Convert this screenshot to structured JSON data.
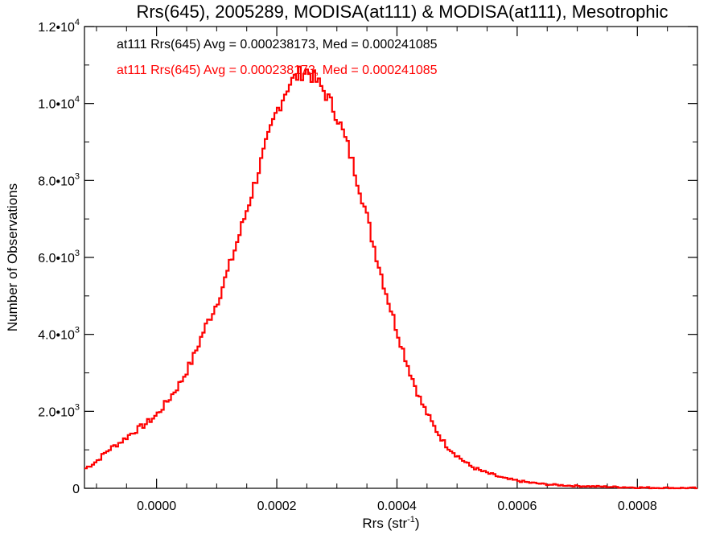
{
  "chart_data": {
    "type": "histogram",
    "title": "Rrs(645), 2005289, MODISA(at111) & MODISA(at111), Mesotrophic",
    "xlabel": "Rrs (str",
    "xlabel_sup": "-1",
    "xlabel_end": ")",
    "ylabel": "Number of Observations",
    "xlim": [
      -0.00012,
      0.0009
    ],
    "ylim": [
      0,
      12000
    ],
    "grid": false,
    "legend_placement": "top-left",
    "x_ticks": [
      {
        "value": 0.0,
        "label": "0.0000"
      },
      {
        "value": 0.0002,
        "label": "0.0002"
      },
      {
        "value": 0.0004,
        "label": "0.0004"
      },
      {
        "value": 0.0006,
        "label": "0.0006"
      },
      {
        "value": 0.0008,
        "label": "0.0008"
      }
    ],
    "y_ticks": [
      {
        "value": 0,
        "mant": "0",
        "exp": ""
      },
      {
        "value": 2000,
        "mant": "2.0•10",
        "exp": "3"
      },
      {
        "value": 4000,
        "mant": "4.0•10",
        "exp": "3"
      },
      {
        "value": 6000,
        "mant": "6.0•10",
        "exp": "3"
      },
      {
        "value": 8000,
        "mant": "8.0•10",
        "exp": "3"
      },
      {
        "value": 10000,
        "mant": "1.0•10",
        "exp": "4"
      },
      {
        "value": 12000,
        "mant": "1.2•10",
        "exp": "4"
      }
    ],
    "series": [
      {
        "name": "at111 Rrs(645) Avg = 0.000238173, Med = 0.000241085",
        "color": "#000000"
      },
      {
        "name": "at111 Rrs(645) Avg = 0.000238173, Med = 0.000241085",
        "color": "#ff0000"
      }
    ],
    "distribution": {
      "shape": "histogram",
      "bin_width": 4e-06,
      "x": [
        -0.00012,
        -0.0001,
        -8e-05,
        -6e-05,
        -4e-05,
        -2e-05,
        0.0,
        2e-05,
        4e-05,
        6e-05,
        8e-05,
        0.0001,
        0.00012,
        0.00014,
        0.00016,
        0.00018,
        0.0002,
        0.00022,
        0.00024,
        0.00025,
        0.00026,
        0.00028,
        0.0003,
        0.00032,
        0.00034,
        0.00036,
        0.00038,
        0.0004,
        0.00042,
        0.00044,
        0.00046,
        0.00048,
        0.0005,
        0.00052,
        0.00054,
        0.00056,
        0.00058,
        0.0006,
        0.00062,
        0.00065,
        0.0007,
        0.00075,
        0.0008,
        0.00085,
        0.0009
      ],
      "y": [
        500,
        700,
        1000,
        1200,
        1450,
        1650,
        1900,
        2300,
        2750,
        3350,
        4150,
        4800,
        5700,
        6700,
        7750,
        8800,
        9800,
        10500,
        10800,
        10850,
        10700,
        10300,
        9700,
        8800,
        7700,
        6400,
        5200,
        4100,
        3100,
        2250,
        1650,
        1150,
        850,
        600,
        450,
        350,
        250,
        200,
        150,
        100,
        60,
        40,
        20,
        10,
        5
      ]
    }
  }
}
